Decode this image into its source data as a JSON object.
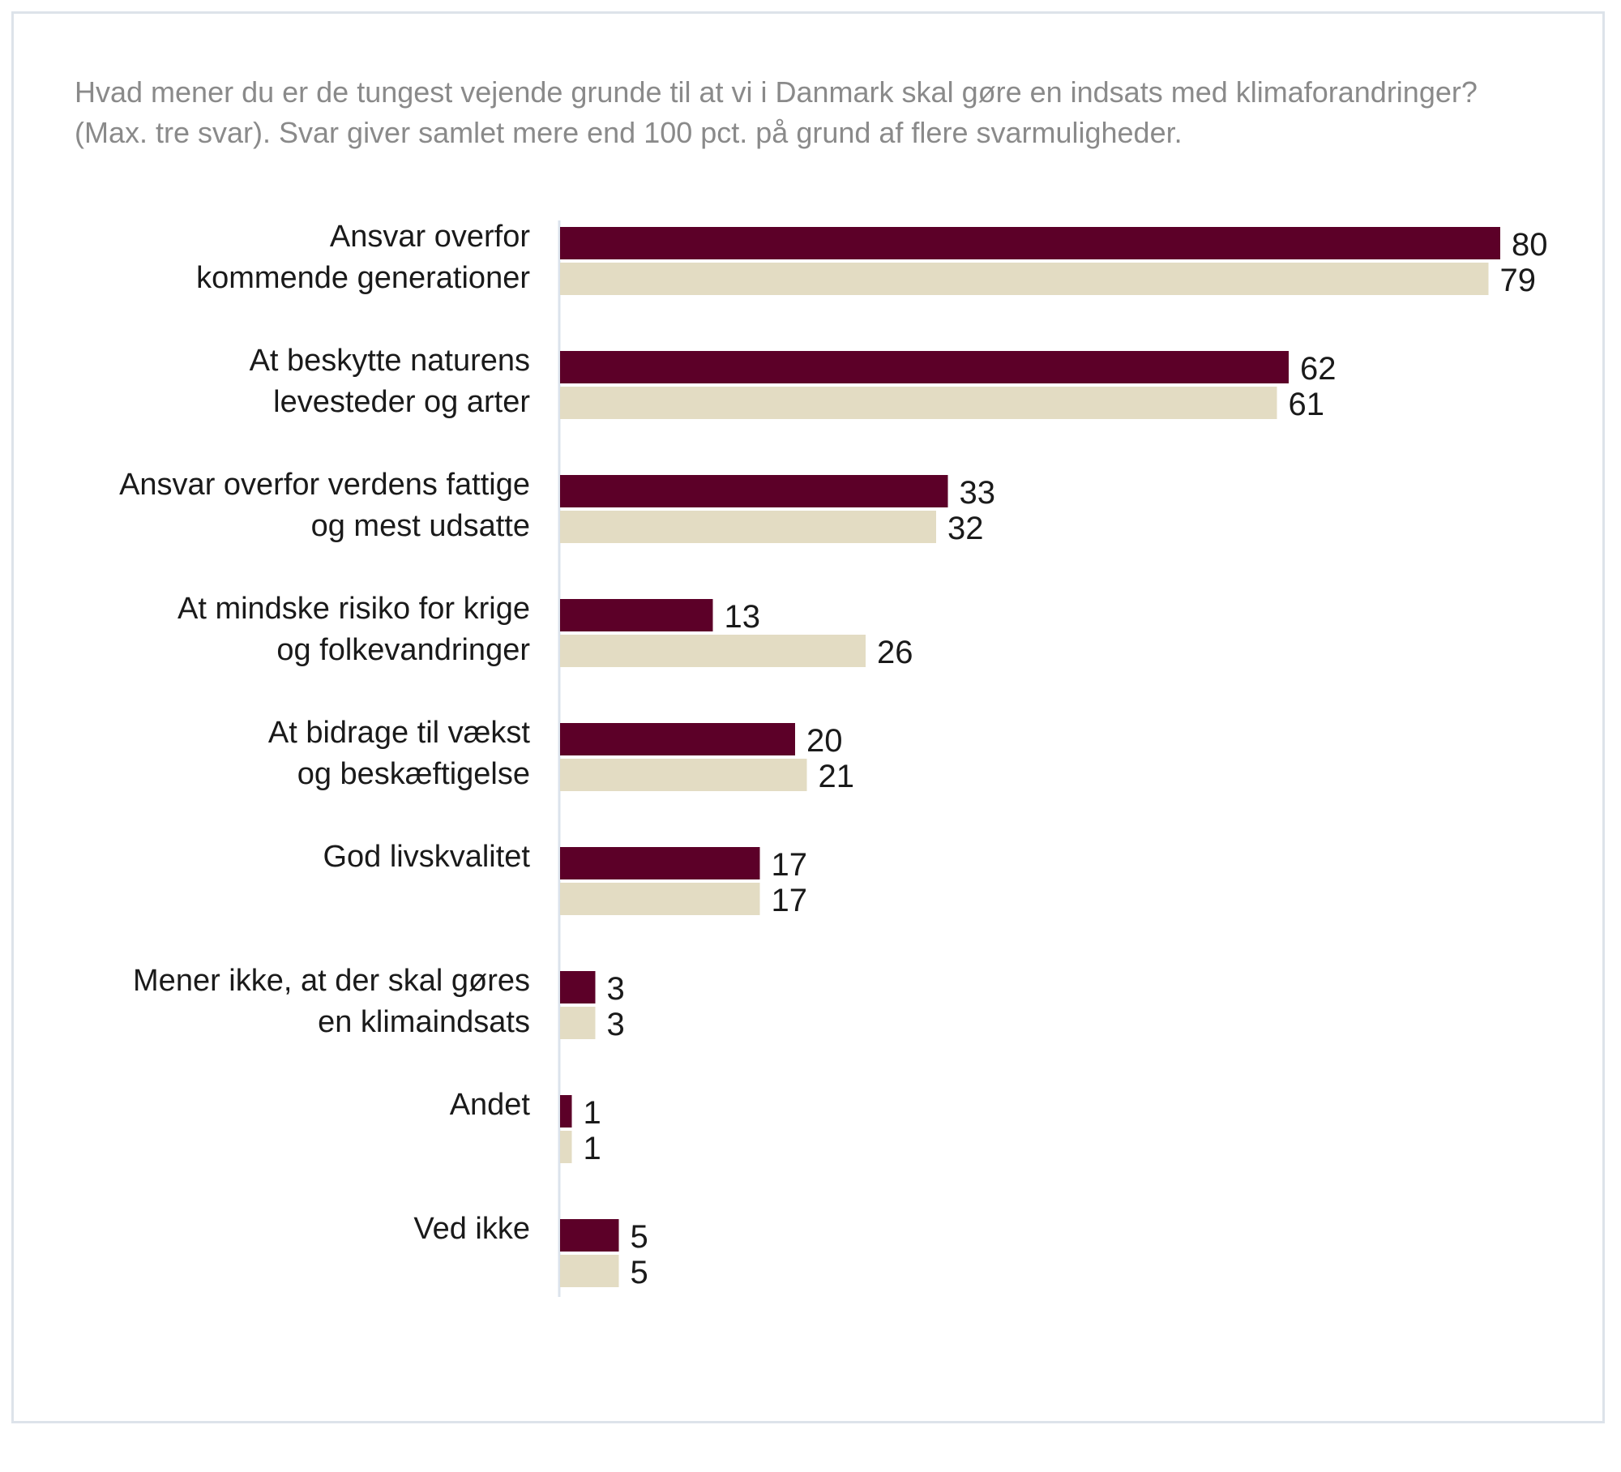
{
  "chart_data": {
    "type": "bar",
    "orientation": "horizontal",
    "title_lines": [
      "Hvad mener du er de tungest vejende grunde til at vi i Danmark skal gøre en indsats med klimaforandringer?",
      "(Max. tre svar). Svar giver samlet mere end 100 pct. på grund af flere svarmuligheder."
    ],
    "categories": [
      [
        "Ansvar overfor",
        "kommende generationer"
      ],
      [
        "At beskytte naturens",
        "levesteder og arter"
      ],
      [
        "Ansvar overfor verdens fattige",
        "og mest udsatte"
      ],
      [
        "At mindske risiko for krige",
        "og folkevandringer"
      ],
      [
        "At bidrage til vækst",
        "og beskæftigelse"
      ],
      [
        "God livskvalitet"
      ],
      [
        "Mener ikke, at der skal gøres",
        "en klimaindsats"
      ],
      [
        "Andet"
      ],
      [
        "Ved ikke"
      ]
    ],
    "series": [
      {
        "name": "series-1",
        "color": "#5c0028",
        "values": [
          80,
          62,
          33,
          13,
          20,
          17,
          3,
          1,
          5
        ]
      },
      {
        "name": "series-2",
        "color": "#e3dcc3",
        "values": [
          79,
          61,
          32,
          26,
          21,
          17,
          3,
          1,
          5
        ]
      }
    ],
    "xlim": [
      0,
      100
    ],
    "axis_color": "#dbe3ec",
    "grid": false
  }
}
